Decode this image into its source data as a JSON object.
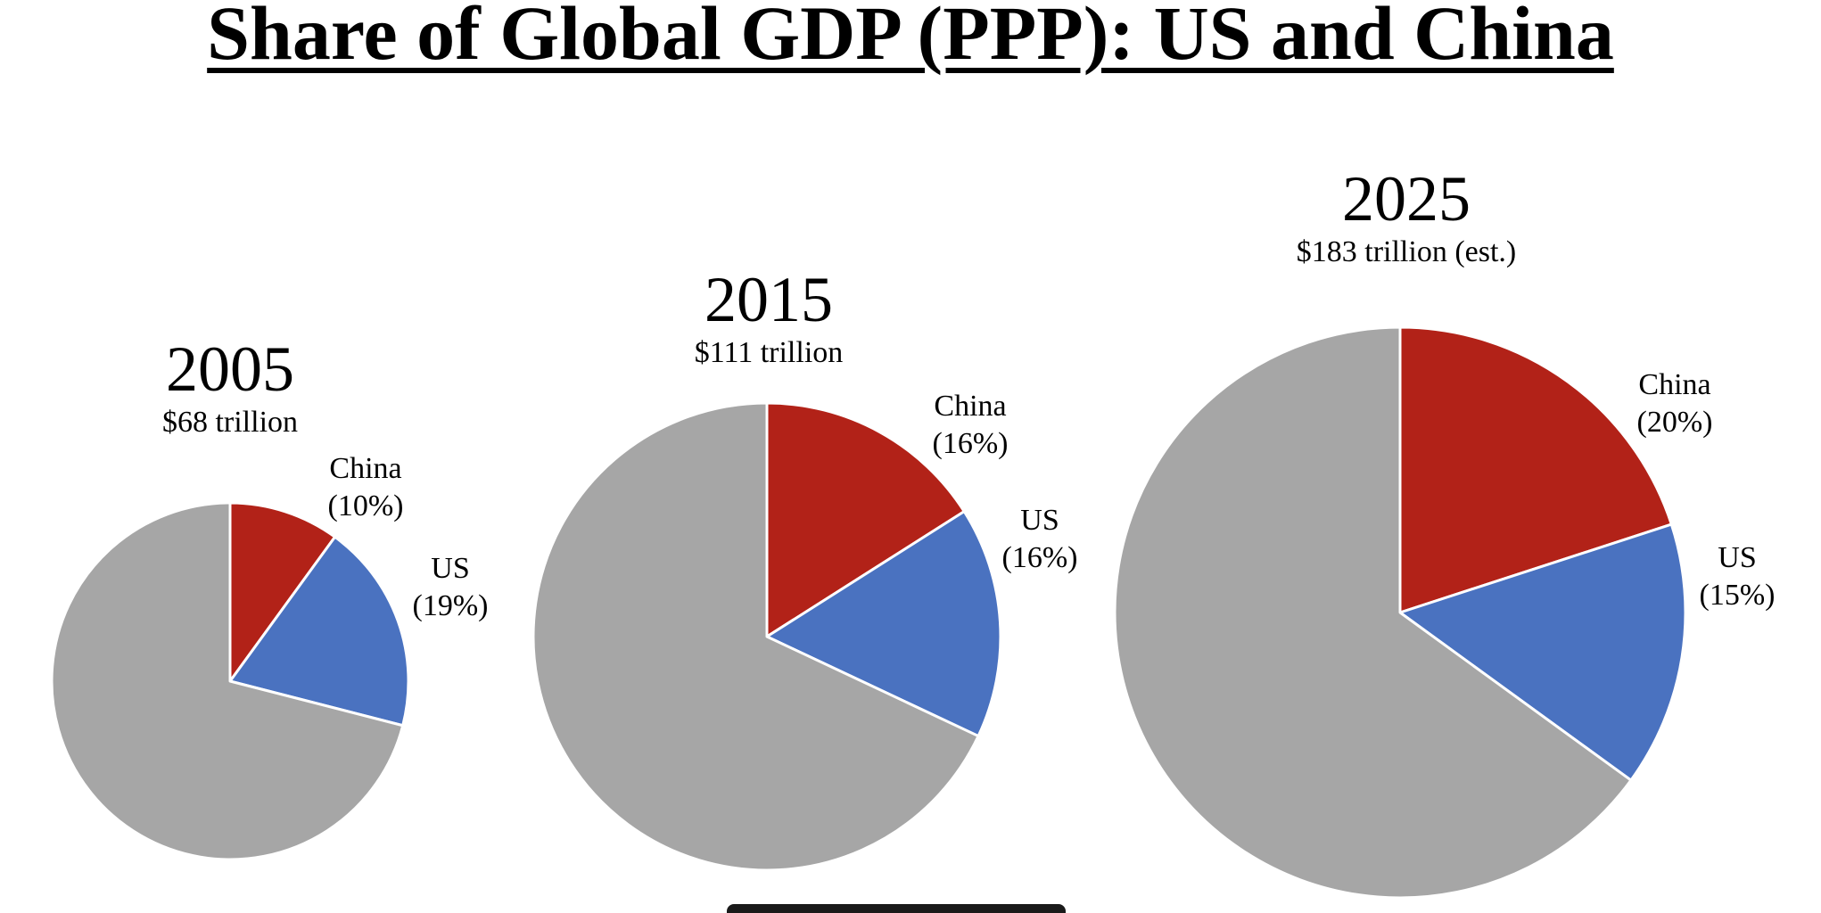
{
  "title": "Share of Global GDP (PPP): US and China",
  "colors": {
    "china": "#b22218",
    "us": "#4a72c0",
    "rest": "#a6a6a6"
  },
  "chart_data": [
    {
      "type": "pie",
      "title": "2005",
      "subtitle": "$68 trillion",
      "slices": [
        {
          "name": "China",
          "value": 10,
          "label": "(10%)"
        },
        {
          "name": "US",
          "value": 19,
          "label": "(19%)"
        },
        {
          "name": "",
          "value": 71,
          "label": ""
        }
      ]
    },
    {
      "type": "pie",
      "title": "2015",
      "subtitle": "$111 trillion",
      "slices": [
        {
          "name": "China",
          "value": 16,
          "label": "(16%)"
        },
        {
          "name": "US",
          "value": 16,
          "label": "(16%)"
        },
        {
          "name": "",
          "value": 68,
          "label": ""
        }
      ]
    },
    {
      "type": "pie",
      "title": "2025",
      "subtitle": "$183 trillion (est.)",
      "slices": [
        {
          "name": "China",
          "value": 20,
          "label": "(20%)"
        },
        {
          "name": "US",
          "value": 15,
          "label": "(15%)"
        },
        {
          "name": "",
          "value": 65,
          "label": ""
        }
      ]
    }
  ]
}
